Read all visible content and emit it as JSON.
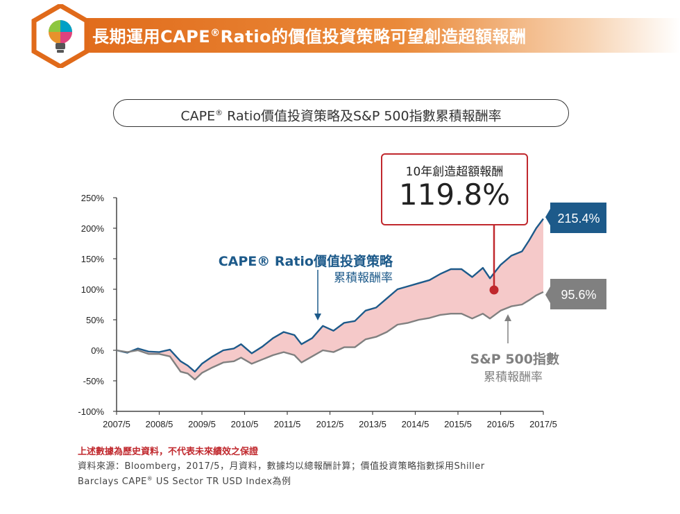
{
  "header": {
    "title_before_sup": "長期運用CAPE",
    "title_sup": "®",
    "title_after_sup": "Ratio的價值投資策略可望創造超額報酬"
  },
  "subtitle": {
    "before_sup": "CAPE",
    "sup": "®",
    "after_sup": " Ratio價值投資策略及S&P 500指數累積報酬率"
  },
  "callout": {
    "label": "10年創造超額報酬",
    "value": "119.8%"
  },
  "annotations": {
    "cape_line1": "CAPE® Ratio價值投資策略",
    "cape_line2": "累積報酬率",
    "sp_line1": "S&P 500指數",
    "sp_line2": "累積報酬率"
  },
  "end_labels": {
    "cape": "215.4%",
    "sp": "95.6%"
  },
  "footer": {
    "warning": "上述數據為歷史資料，不代表未來績效之保證",
    "source_line1": "資料來源：Bloomberg，2017/5，月資料，數據均以總報酬計算；價值投資策略指數採用Shiller",
    "source_line2_before_sup": "Barclays CAPE",
    "source_line2_sup": "®",
    "source_line2_after_sup": " US Sector TR USD Index為例"
  },
  "colors": {
    "brand_orange": "#e06a1a",
    "cape_line": "#1d5a8a",
    "sp_line": "#808080",
    "fill_between": "#f5c9c9",
    "callout_border": "#c0282d",
    "warning_text": "#c0282d"
  },
  "icons": {
    "logo": "puzzle-lightbulb-icon"
  },
  "chart_data": {
    "type": "line",
    "x_start": "2007/5",
    "x_end": "2017/5",
    "xlim": [
      "2007/5",
      "2017/5"
    ],
    "ylim": [
      -100,
      250
    ],
    "y_unit": "%",
    "yticks": [
      "250%",
      "200%",
      "150%",
      "100%",
      "50%",
      "0%",
      "-50%",
      "-100%"
    ],
    "yticks_values": [
      250,
      200,
      150,
      100,
      50,
      0,
      -50,
      -100
    ],
    "xticks": [
      "2007/5",
      "2008/5",
      "2009/5",
      "2010/5",
      "2011/5",
      "2012/5",
      "2013/5",
      "2014/5",
      "2015/5",
      "2016/5",
      "2017/5"
    ],
    "grid": false,
    "fill_between_series": true,
    "series": [
      {
        "name": "CAPE® Ratio價值投資策略累積報酬率",
        "points": [
          [
            "2007/5",
            0
          ],
          [
            "2007/8",
            -4
          ],
          [
            "2007/11",
            3
          ],
          [
            "2008/2",
            -2
          ],
          [
            "2008/5",
            -3
          ],
          [
            "2008/8",
            1
          ],
          [
            "2008/11",
            -18
          ],
          [
            "2009/1",
            -25
          ],
          [
            "2009/3",
            -35
          ],
          [
            "2009/5",
            -22
          ],
          [
            "2009/8",
            -10
          ],
          [
            "2009/11",
            0
          ],
          [
            "2010/2",
            3
          ],
          [
            "2010/4",
            10
          ],
          [
            "2010/7",
            -5
          ],
          [
            "2010/10",
            6
          ],
          [
            "2011/1",
            20
          ],
          [
            "2011/4",
            30
          ],
          [
            "2011/7",
            25
          ],
          [
            "2011/9",
            10
          ],
          [
            "2011/12",
            20
          ],
          [
            "2012/3",
            40
          ],
          [
            "2012/6",
            32
          ],
          [
            "2012/9",
            45
          ],
          [
            "2012/12",
            48
          ],
          [
            "2013/3",
            65
          ],
          [
            "2013/6",
            70
          ],
          [
            "2013/9",
            85
          ],
          [
            "2013/12",
            100
          ],
          [
            "2014/3",
            105
          ],
          [
            "2014/6",
            110
          ],
          [
            "2014/9",
            115
          ],
          [
            "2014/12",
            125
          ],
          [
            "2015/3",
            133
          ],
          [
            "2015/6",
            133
          ],
          [
            "2015/9",
            120
          ],
          [
            "2015/12",
            135
          ],
          [
            "2016/2",
            118
          ],
          [
            "2016/5",
            140
          ],
          [
            "2016/8",
            155
          ],
          [
            "2016/11",
            162
          ],
          [
            "2017/1",
            180
          ],
          [
            "2017/3",
            200
          ],
          [
            "2017/5",
            215.4
          ]
        ]
      },
      {
        "name": "S&P 500指數累積報酬率",
        "points": [
          [
            "2007/5",
            0
          ],
          [
            "2007/8",
            -3
          ],
          [
            "2007/11",
            0
          ],
          [
            "2008/2",
            -6
          ],
          [
            "2008/5",
            -6
          ],
          [
            "2008/8",
            -10
          ],
          [
            "2008/11",
            -35
          ],
          [
            "2009/1",
            -38
          ],
          [
            "2009/3",
            -48
          ],
          [
            "2009/5",
            -37
          ],
          [
            "2009/8",
            -28
          ],
          [
            "2009/11",
            -20
          ],
          [
            "2010/2",
            -18
          ],
          [
            "2010/4",
            -12
          ],
          [
            "2010/7",
            -22
          ],
          [
            "2010/10",
            -15
          ],
          [
            "2011/1",
            -8
          ],
          [
            "2011/4",
            -3
          ],
          [
            "2011/7",
            -8
          ],
          [
            "2011/9",
            -20
          ],
          [
            "2011/12",
            -10
          ],
          [
            "2012/3",
            0
          ],
          [
            "2012/6",
            -3
          ],
          [
            "2012/9",
            5
          ],
          [
            "2012/12",
            5
          ],
          [
            "2013/3",
            18
          ],
          [
            "2013/6",
            22
          ],
          [
            "2013/9",
            30
          ],
          [
            "2013/12",
            42
          ],
          [
            "2014/3",
            45
          ],
          [
            "2014/6",
            50
          ],
          [
            "2014/9",
            53
          ],
          [
            "2014/12",
            58
          ],
          [
            "2015/3",
            60
          ],
          [
            "2015/6",
            60
          ],
          [
            "2015/9",
            52
          ],
          [
            "2015/12",
            60
          ],
          [
            "2016/2",
            52
          ],
          [
            "2016/5",
            65
          ],
          [
            "2016/8",
            72
          ],
          [
            "2016/11",
            75
          ],
          [
            "2017/1",
            82
          ],
          [
            "2017/3",
            90
          ],
          [
            "2017/5",
            95.6
          ]
        ]
      }
    ],
    "annotations": [
      "10年創造超額報酬 119.8%",
      "215.4%",
      "95.6%"
    ]
  }
}
